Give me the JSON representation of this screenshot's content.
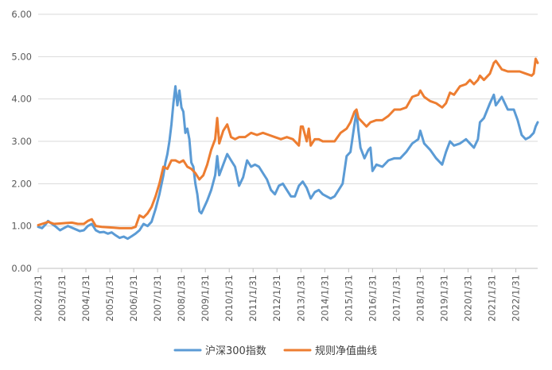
{
  "chart_data": {
    "type": "line",
    "title": "",
    "xlabel": "",
    "ylabel": "",
    "ylim": [
      0,
      6
    ],
    "y_ticks": [
      "0.00",
      "1.00",
      "2.00",
      "3.00",
      "4.00",
      "5.00",
      "6.00"
    ],
    "x_range": [
      "2002/1/31",
      "2022/12/31"
    ],
    "x_tick_labels": [
      "2002/1/31",
      "2003/1/31",
      "2004/1/31",
      "2005/1/31",
      "2006/1/31",
      "2007/1/31",
      "2008/1/31",
      "2009/1/31",
      "2010/1/31",
      "2011/1/31",
      "2012/1/31",
      "2013/1/31",
      "2014/1/31",
      "2015/1/31",
      "2016/1/31",
      "2017/1/31",
      "2018/1/31",
      "2019/1/31",
      "2020/1/31",
      "2021/1/31",
      "2022/1/31"
    ],
    "grid": "horizontal",
    "legend_position": "bottom",
    "series": [
      {
        "name": "沪深300指数",
        "color": "#5B9BD5",
        "points": [
          [
            "2002/1/31",
            0.98
          ],
          [
            "2002/3/31",
            0.95
          ],
          [
            "2002/5/31",
            1.05
          ],
          [
            "2002/6/30",
            1.12
          ],
          [
            "2002/8/31",
            1.05
          ],
          [
            "2002/10/31",
            0.98
          ],
          [
            "2002/12/31",
            0.9
          ],
          [
            "2003/2/28",
            0.95
          ],
          [
            "2003/4/30",
            1.0
          ],
          [
            "2003/6/30",
            0.96
          ],
          [
            "2003/8/31",
            0.92
          ],
          [
            "2003/10/31",
            0.88
          ],
          [
            "2003/12/31",
            0.9
          ],
          [
            "2004/2/29",
            1.0
          ],
          [
            "2004/4/30",
            1.05
          ],
          [
            "2004/6/30",
            0.9
          ],
          [
            "2004/8/31",
            0.85
          ],
          [
            "2004/10/31",
            0.86
          ],
          [
            "2004/12/31",
            0.82
          ],
          [
            "2005/2/28",
            0.85
          ],
          [
            "2005/4/30",
            0.78
          ],
          [
            "2005/6/30",
            0.72
          ],
          [
            "2005/8/31",
            0.75
          ],
          [
            "2005/10/31",
            0.7
          ],
          [
            "2005/12/31",
            0.76
          ],
          [
            "2006/2/28",
            0.82
          ],
          [
            "2006/4/30",
            0.9
          ],
          [
            "2006/6/30",
            1.05
          ],
          [
            "2006/8/31",
            1.0
          ],
          [
            "2006/10/31",
            1.1
          ],
          [
            "2006/12/31",
            1.4
          ],
          [
            "2007/2/28",
            1.75
          ],
          [
            "2007/4/30",
            2.2
          ],
          [
            "2007/5/31",
            2.5
          ],
          [
            "2007/6/30",
            2.7
          ],
          [
            "2007/7/31",
            3.0
          ],
          [
            "2007/8/31",
            3.4
          ],
          [
            "2007/9/30",
            3.9
          ],
          [
            "2007/10/31",
            4.3
          ],
          [
            "2007/11/30",
            3.85
          ],
          [
            "2007/12/31",
            4.2
          ],
          [
            "2008/1/31",
            3.8
          ],
          [
            "2008/2/29",
            3.7
          ],
          [
            "2008/3/31",
            3.2
          ],
          [
            "2008/4/30",
            3.3
          ],
          [
            "2008/5/31",
            3.05
          ],
          [
            "2008/6/30",
            2.5
          ],
          [
            "2008/7/31",
            2.4
          ],
          [
            "2008/8/31",
            2.0
          ],
          [
            "2008/9/30",
            1.75
          ],
          [
            "2008/10/31",
            1.35
          ],
          [
            "2008/11/30",
            1.3
          ],
          [
            "2008/12/31",
            1.4
          ],
          [
            "2009/2/28",
            1.6
          ],
          [
            "2009/4/30",
            1.85
          ],
          [
            "2009/6/30",
            2.2
          ],
          [
            "2009/7/31",
            2.65
          ],
          [
            "2009/8/31",
            2.2
          ],
          [
            "2009/10/31",
            2.45
          ],
          [
            "2009/12/31",
            2.7
          ],
          [
            "2010/2/28",
            2.55
          ],
          [
            "2010/4/30",
            2.4
          ],
          [
            "2010/6/30",
            1.95
          ],
          [
            "2010/8/31",
            2.15
          ],
          [
            "2010/10/31",
            2.55
          ],
          [
            "2010/12/31",
            2.4
          ],
          [
            "2011/2/28",
            2.45
          ],
          [
            "2011/4/30",
            2.4
          ],
          [
            "2011/6/30",
            2.25
          ],
          [
            "2011/8/31",
            2.1
          ],
          [
            "2011/10/31",
            1.85
          ],
          [
            "2011/12/31",
            1.75
          ],
          [
            "2012/2/29",
            1.95
          ],
          [
            "2012/4/30",
            2.0
          ],
          [
            "2012/6/30",
            1.85
          ],
          [
            "2012/8/31",
            1.7
          ],
          [
            "2012/10/31",
            1.7
          ],
          [
            "2012/12/31",
            1.95
          ],
          [
            "2013/2/28",
            2.05
          ],
          [
            "2013/4/30",
            1.9
          ],
          [
            "2013/6/30",
            1.65
          ],
          [
            "2013/8/31",
            1.8
          ],
          [
            "2013/10/31",
            1.85
          ],
          [
            "2013/12/31",
            1.75
          ],
          [
            "2014/2/28",
            1.7
          ],
          [
            "2014/4/30",
            1.65
          ],
          [
            "2014/6/30",
            1.7
          ],
          [
            "2014/8/31",
            1.85
          ],
          [
            "2014/10/31",
            2.0
          ],
          [
            "2014/12/31",
            2.65
          ],
          [
            "2015/2/28",
            2.75
          ],
          [
            "2015/4/30",
            3.4
          ],
          [
            "2015/5/31",
            3.7
          ],
          [
            "2015/6/30",
            3.25
          ],
          [
            "2015/7/31",
            2.85
          ],
          [
            "2015/9/30",
            2.6
          ],
          [
            "2015/11/30",
            2.8
          ],
          [
            "2015/12/31",
            2.85
          ],
          [
            "2016/1/31",
            2.3
          ],
          [
            "2016/3/31",
            2.45
          ],
          [
            "2016/6/30",
            2.4
          ],
          [
            "2016/9/30",
            2.55
          ],
          [
            "2016/12/31",
            2.6
          ],
          [
            "2017/3/31",
            2.6
          ],
          [
            "2017/6/30",
            2.75
          ],
          [
            "2017/9/30",
            2.95
          ],
          [
            "2017/12/31",
            3.05
          ],
          [
            "2018/1/31",
            3.25
          ],
          [
            "2018/3/31",
            2.95
          ],
          [
            "2018/6/30",
            2.8
          ],
          [
            "2018/9/30",
            2.6
          ],
          [
            "2018/12/31",
            2.45
          ],
          [
            "2019/2/28",
            2.75
          ],
          [
            "2019/4/30",
            3.0
          ],
          [
            "2019/6/30",
            2.9
          ],
          [
            "2019/9/30",
            2.95
          ],
          [
            "2019/12/31",
            3.05
          ],
          [
            "2020/2/29",
            2.95
          ],
          [
            "2020/4/30",
            2.85
          ],
          [
            "2020/6/30",
            3.05
          ],
          [
            "2020/7/31",
            3.45
          ],
          [
            "2020/9/30",
            3.55
          ],
          [
            "2020/12/31",
            3.9
          ],
          [
            "2021/2/28",
            4.1
          ],
          [
            "2021/3/31",
            3.85
          ],
          [
            "2021/6/30",
            4.05
          ],
          [
            "2021/9/30",
            3.75
          ],
          [
            "2021/12/31",
            3.75
          ],
          [
            "2022/2/28",
            3.5
          ],
          [
            "2022/4/30",
            3.15
          ],
          [
            "2022/6/30",
            3.05
          ],
          [
            "2022/8/31",
            3.1
          ],
          [
            "2022/10/31",
            3.2
          ],
          [
            "2022/11/30",
            3.35
          ],
          [
            "2022/12/31",
            3.45
          ]
        ]
      },
      {
        "name": "规则净值曲线",
        "color": "#ED7D31",
        "points": [
          [
            "2002/1/31",
            1.02
          ],
          [
            "2002/3/31",
            1.05
          ],
          [
            "2002/5/31",
            1.08
          ],
          [
            "2002/6/30",
            1.1
          ],
          [
            "2002/9/30",
            1.05
          ],
          [
            "2002/12/31",
            1.06
          ],
          [
            "2003/3/31",
            1.07
          ],
          [
            "2003/6/30",
            1.08
          ],
          [
            "2003/9/30",
            1.05
          ],
          [
            "2003/12/31",
            1.05
          ],
          [
            "2004/2/29",
            1.12
          ],
          [
            "2004/4/30",
            1.16
          ],
          [
            "2004/6/30",
            1.0
          ],
          [
            "2004/9/30",
            0.98
          ],
          [
            "2004/12/31",
            0.97
          ],
          [
            "2005/3/31",
            0.96
          ],
          [
            "2005/6/30",
            0.95
          ],
          [
            "2005/9/30",
            0.95
          ],
          [
            "2005/12/31",
            0.95
          ],
          [
            "2006/2/28",
            0.98
          ],
          [
            "2006/4/30",
            1.25
          ],
          [
            "2006/6/30",
            1.2
          ],
          [
            "2006/8/31",
            1.3
          ],
          [
            "2006/10/31",
            1.45
          ],
          [
            "2006/12/31",
            1.7
          ],
          [
            "2007/2/28",
            2.0
          ],
          [
            "2007/4/30",
            2.4
          ],
          [
            "2007/6/30",
            2.35
          ],
          [
            "2007/8/31",
            2.55
          ],
          [
            "2007/10/31",
            2.55
          ],
          [
            "2007/12/31",
            2.5
          ],
          [
            "2008/2/29",
            2.55
          ],
          [
            "2008/4/30",
            2.4
          ],
          [
            "2008/6/30",
            2.35
          ],
          [
            "2008/8/31",
            2.25
          ],
          [
            "2008/10/31",
            2.1
          ],
          [
            "2008/12/31",
            2.2
          ],
          [
            "2009/2/28",
            2.45
          ],
          [
            "2009/4/30",
            2.8
          ],
          [
            "2009/6/30",
            3.05
          ],
          [
            "2009/7/31",
            3.55
          ],
          [
            "2009/8/31",
            2.95
          ],
          [
            "2009/10/31",
            3.25
          ],
          [
            "2009/12/31",
            3.4
          ],
          [
            "2010/2/28",
            3.1
          ],
          [
            "2010/4/30",
            3.05
          ],
          [
            "2010/6/30",
            3.1
          ],
          [
            "2010/9/30",
            3.1
          ],
          [
            "2010/12/31",
            3.2
          ],
          [
            "2011/3/31",
            3.15
          ],
          [
            "2011/6/30",
            3.2
          ],
          [
            "2011/9/30",
            3.15
          ],
          [
            "2011/12/31",
            3.1
          ],
          [
            "2012/3/31",
            3.05
          ],
          [
            "2012/6/30",
            3.1
          ],
          [
            "2012/9/30",
            3.05
          ],
          [
            "2012/12/31",
            2.9
          ],
          [
            "2013/1/31",
            3.35
          ],
          [
            "2013/2/28",
            3.35
          ],
          [
            "2013/4/30",
            3.0
          ],
          [
            "2013/5/31",
            3.3
          ],
          [
            "2013/6/30",
            2.9
          ],
          [
            "2013/8/31",
            3.05
          ],
          [
            "2013/10/31",
            3.05
          ],
          [
            "2013/12/31",
            3.0
          ],
          [
            "2014/3/31",
            3.0
          ],
          [
            "2014/6/30",
            3.0
          ],
          [
            "2014/9/30",
            3.2
          ],
          [
            "2014/12/31",
            3.3
          ],
          [
            "2015/2/28",
            3.45
          ],
          [
            "2015/4/30",
            3.7
          ],
          [
            "2015/5/31",
            3.75
          ],
          [
            "2015/6/30",
            3.55
          ],
          [
            "2015/8/31",
            3.45
          ],
          [
            "2015/10/31",
            3.35
          ],
          [
            "2015/12/31",
            3.45
          ],
          [
            "2016/3/31",
            3.5
          ],
          [
            "2016/6/30",
            3.5
          ],
          [
            "2016/9/30",
            3.6
          ],
          [
            "2016/12/31",
            3.75
          ],
          [
            "2017/3/31",
            3.75
          ],
          [
            "2017/6/30",
            3.8
          ],
          [
            "2017/9/30",
            4.05
          ],
          [
            "2017/12/31",
            4.1
          ],
          [
            "2018/1/31",
            4.2
          ],
          [
            "2018/3/31",
            4.05
          ],
          [
            "2018/6/30",
            3.95
          ],
          [
            "2018/9/30",
            3.9
          ],
          [
            "2018/12/31",
            3.8
          ],
          [
            "2019/2/28",
            3.9
          ],
          [
            "2019/4/30",
            4.15
          ],
          [
            "2019/6/30",
            4.1
          ],
          [
            "2019/9/30",
            4.3
          ],
          [
            "2019/12/31",
            4.35
          ],
          [
            "2020/2/29",
            4.45
          ],
          [
            "2020/4/30",
            4.35
          ],
          [
            "2020/6/30",
            4.45
          ],
          [
            "2020/7/31",
            4.55
          ],
          [
            "2020/9/30",
            4.45
          ],
          [
            "2020/12/31",
            4.6
          ],
          [
            "2021/2/28",
            4.85
          ],
          [
            "2021/3/31",
            4.9
          ],
          [
            "2021/6/30",
            4.7
          ],
          [
            "2021/9/30",
            4.65
          ],
          [
            "2021/12/31",
            4.65
          ],
          [
            "2022/3/31",
            4.65
          ],
          [
            "2022/6/30",
            4.6
          ],
          [
            "2022/9/30",
            4.55
          ],
          [
            "2022/10/31",
            4.6
          ],
          [
            "2022/11/30",
            4.95
          ],
          [
            "2022/12/31",
            4.85
          ]
        ]
      }
    ]
  }
}
